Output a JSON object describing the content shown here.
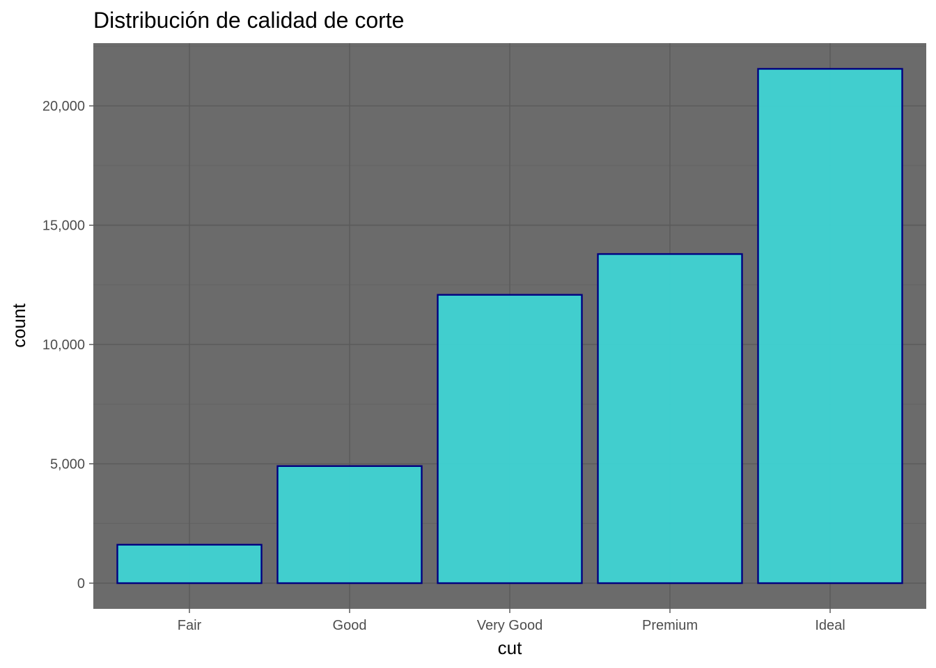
{
  "chart_data": {
    "type": "bar",
    "title": "Distribución de calidad de corte",
    "xlabel": "cut",
    "ylabel": "count",
    "categories": [
      "Fair",
      "Good",
      "Very Good",
      "Premium",
      "Ideal"
    ],
    "values": [
      1610,
      4906,
      12082,
      13791,
      21551
    ],
    "ylim": [
      -1077.55,
      22628.55
    ],
    "yticks": [
      0,
      5000,
      10000,
      15000,
      20000
    ],
    "ytick_labels": [
      "0",
      "5,000",
      "10,000",
      "15,000",
      "20,000"
    ],
    "grid": true,
    "legend": "none",
    "colors": {
      "panel_background": "#6b6b6b",
      "grid_major": "#5a5a5a",
      "grid_minor": "#636363",
      "bar_fill": "#3dd9d9",
      "bar_fill_opacity": 0.9,
      "bar_outline": "#000080",
      "tick_text": "#4d4d4d",
      "tick_mark": "#333333"
    }
  }
}
